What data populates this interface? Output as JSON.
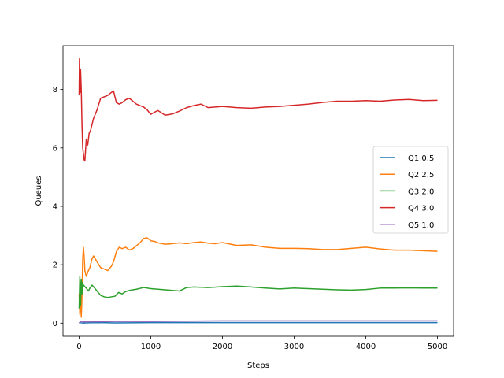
{
  "chart_data": {
    "type": "line",
    "title": "",
    "xlabel": "Steps",
    "ylabel": "Queues",
    "xlim": [
      -225,
      5225
    ],
    "ylim": [
      -0.45,
      9.5
    ],
    "xticks": [
      0,
      1000,
      2000,
      3000,
      4000,
      5000
    ],
    "yticks": [
      0,
      2,
      4,
      6,
      8
    ],
    "xtick_labels": [
      "0",
      "1000",
      "2000",
      "3000",
      "4000",
      "5000"
    ],
    "ytick_labels": [
      "0",
      "2",
      "4",
      "6",
      "8"
    ],
    "grid": false,
    "legend_position": "center-right",
    "series": [
      {
        "name": "Q1 0.5",
        "color": "#1f77b4",
        "x": [
          0,
          10,
          30,
          60,
          100,
          200,
          500,
          1000,
          2000,
          3000,
          4000,
          5000
        ],
        "y": [
          0.0,
          0.02,
          0.01,
          0.0,
          0.01,
          0.02,
          0.01,
          0.02,
          0.02,
          0.02,
          0.02,
          0.02
        ]
      },
      {
        "name": "Q2 2.5",
        "color": "#ff7f0e",
        "x": [
          0,
          10,
          20,
          30,
          40,
          50,
          60,
          70,
          80,
          100,
          130,
          150,
          180,
          200,
          250,
          300,
          350,
          400,
          450,
          480,
          520,
          560,
          600,
          650,
          700,
          750,
          800,
          850,
          900,
          950,
          1000,
          1050,
          1100,
          1200,
          1300,
          1400,
          1500,
          1600,
          1700,
          1800,
          1900,
          2000,
          2200,
          2400,
          2600,
          2800,
          3000,
          3200,
          3400,
          3600,
          3800,
          4000,
          4200,
          4400,
          4600,
          4800,
          5000
        ],
        "y": [
          1.0,
          0.3,
          1.2,
          0.2,
          0.9,
          2.2,
          2.6,
          2.3,
          1.8,
          1.6,
          1.8,
          1.9,
          2.2,
          2.3,
          2.1,
          1.9,
          1.85,
          1.8,
          1.95,
          2.1,
          2.45,
          2.6,
          2.55,
          2.6,
          2.5,
          2.55,
          2.65,
          2.75,
          2.9,
          2.92,
          2.82,
          2.8,
          2.75,
          2.7,
          2.72,
          2.75,
          2.72,
          2.76,
          2.78,
          2.74,
          2.72,
          2.76,
          2.66,
          2.68,
          2.6,
          2.56,
          2.56,
          2.55,
          2.52,
          2.52,
          2.56,
          2.6,
          2.54,
          2.5,
          2.5,
          2.48,
          2.46
        ]
      },
      {
        "name": "Q3 2.0",
        "color": "#2ca02c",
        "x": [
          0,
          10,
          20,
          30,
          40,
          50,
          60,
          80,
          100,
          130,
          150,
          180,
          200,
          250,
          300,
          350,
          400,
          450,
          500,
          550,
          600,
          650,
          700,
          800,
          900,
          1000,
          1100,
          1200,
          1300,
          1400,
          1500,
          1600,
          1800,
          2000,
          2100,
          2200,
          2400,
          2600,
          2800,
          3000,
          3200,
          3400,
          3600,
          3800,
          4000,
          4200,
          4400,
          4600,
          4800,
          5000
        ],
        "y": [
          0.5,
          1.6,
          0.6,
          1.5,
          1.0,
          1.4,
          1.3,
          1.25,
          1.2,
          1.1,
          1.2,
          1.3,
          1.25,
          1.1,
          0.95,
          0.9,
          0.88,
          0.9,
          0.92,
          1.05,
          1.0,
          1.08,
          1.12,
          1.16,
          1.22,
          1.18,
          1.16,
          1.14,
          1.12,
          1.1,
          1.22,
          1.24,
          1.22,
          1.25,
          1.26,
          1.27,
          1.24,
          1.2,
          1.17,
          1.2,
          1.18,
          1.16,
          1.14,
          1.13,
          1.15,
          1.2,
          1.2,
          1.21,
          1.2,
          1.2
        ]
      },
      {
        "name": "Q4 3.0",
        "color": "#d62728",
        "x": [
          0,
          5,
          10,
          15,
          20,
          30,
          40,
          50,
          60,
          70,
          80,
          100,
          120,
          140,
          160,
          180,
          200,
          250,
          300,
          350,
          400,
          450,
          480,
          520,
          560,
          600,
          650,
          700,
          750,
          800,
          850,
          900,
          950,
          1000,
          1050,
          1100,
          1150,
          1200,
          1300,
          1400,
          1500,
          1600,
          1700,
          1800,
          1900,
          2000,
          2200,
          2400,
          2600,
          2800,
          3000,
          3200,
          3400,
          3600,
          3800,
          4000,
          4200,
          4400,
          4600,
          4800,
          5000
        ],
        "y": [
          7.8,
          9.05,
          8.5,
          7.9,
          8.7,
          8.0,
          6.8,
          6.0,
          5.8,
          5.6,
          5.55,
          6.3,
          6.1,
          6.5,
          6.6,
          6.8,
          7.0,
          7.3,
          7.7,
          7.75,
          7.8,
          7.9,
          7.95,
          7.55,
          7.5,
          7.55,
          7.65,
          7.7,
          7.6,
          7.5,
          7.45,
          7.4,
          7.3,
          7.15,
          7.22,
          7.28,
          7.2,
          7.12,
          7.16,
          7.26,
          7.38,
          7.45,
          7.5,
          7.38,
          7.4,
          7.42,
          7.38,
          7.36,
          7.4,
          7.42,
          7.46,
          7.5,
          7.56,
          7.6,
          7.6,
          7.62,
          7.6,
          7.64,
          7.66,
          7.62,
          7.63
        ]
      },
      {
        "name": "Q5 1.0",
        "color": "#9467bd",
        "x": [
          0,
          10,
          30,
          60,
          100,
          200,
          500,
          1000,
          1500,
          2000,
          2500,
          3000,
          4000,
          5000
        ],
        "y": [
          0.0,
          0.03,
          0.06,
          0.04,
          0.05,
          0.05,
          0.06,
          0.06,
          0.07,
          0.08,
          0.08,
          0.08,
          0.08,
          0.08
        ]
      }
    ]
  }
}
